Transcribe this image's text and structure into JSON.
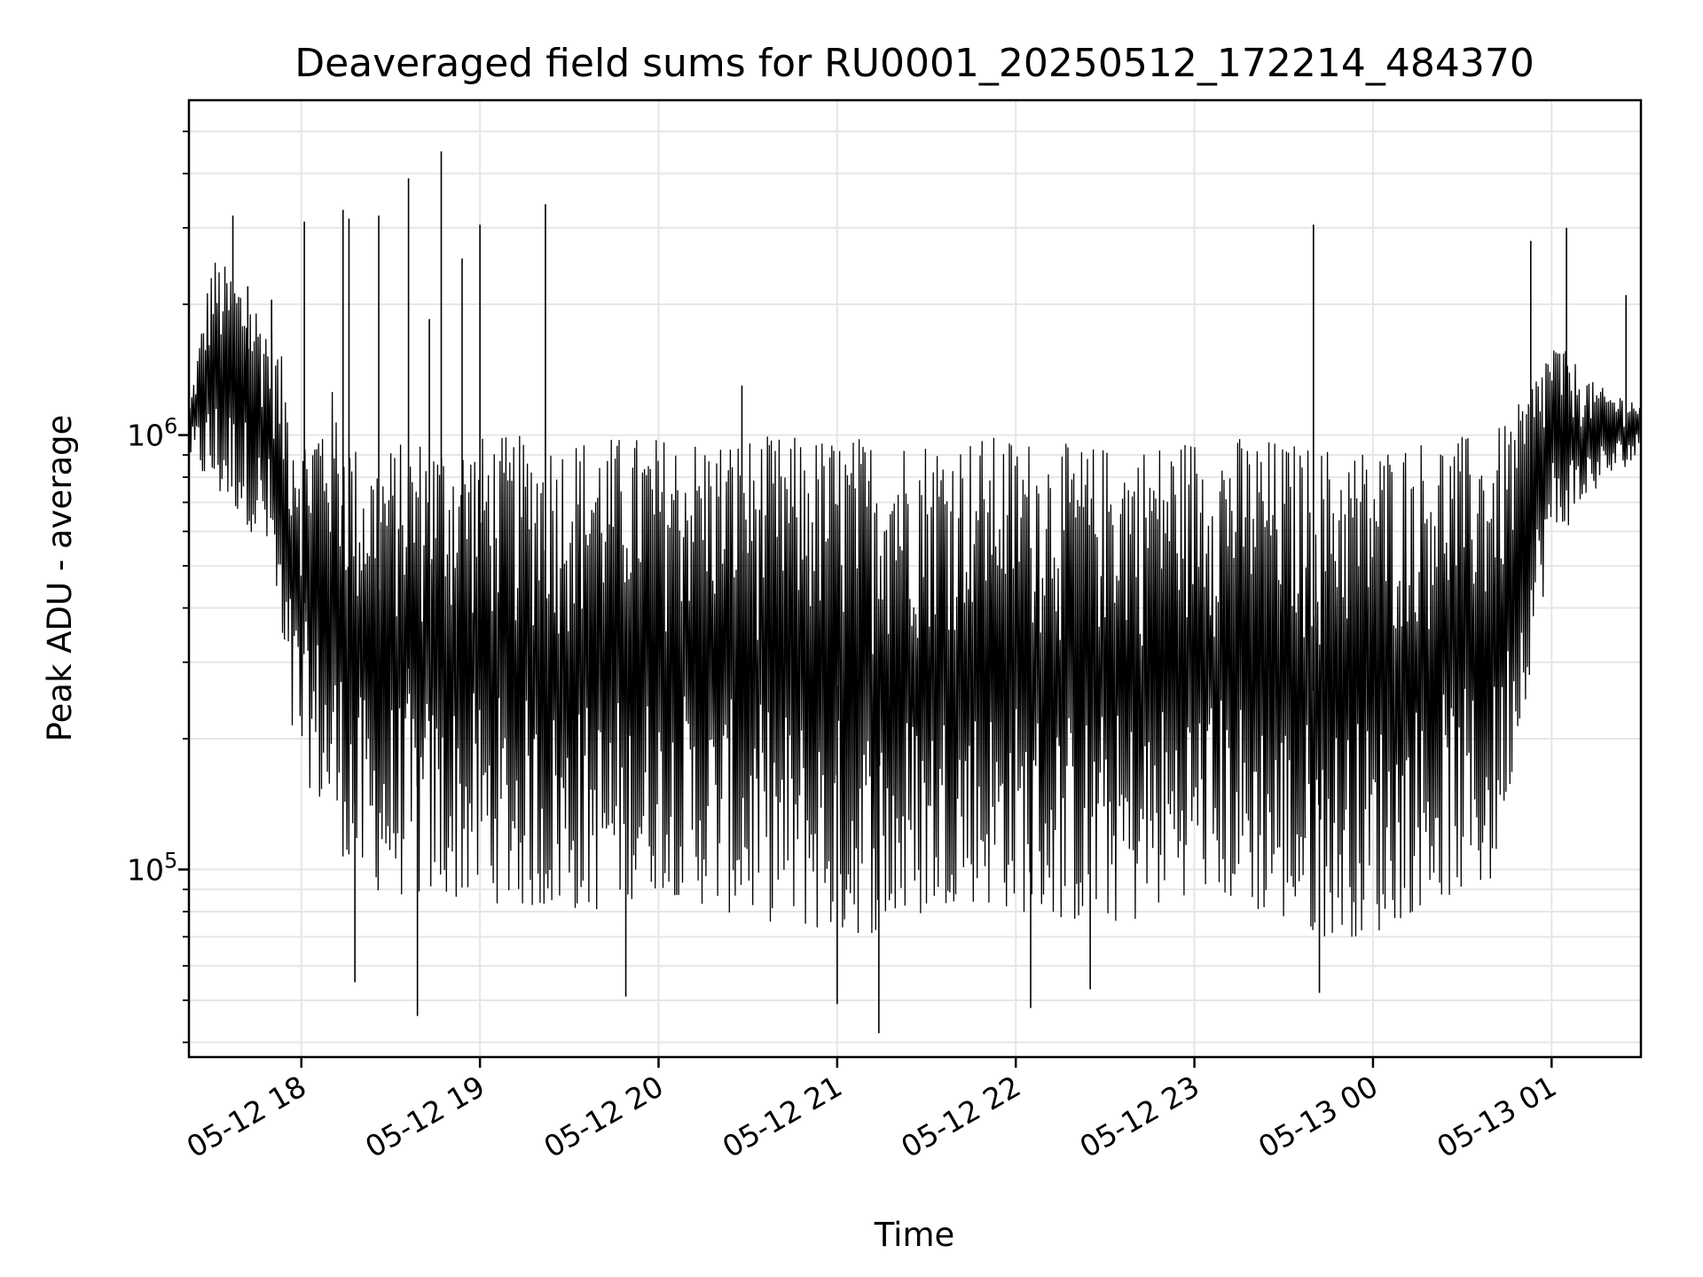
{
  "chart_data": {
    "type": "line",
    "title": "Deaveraged field sums for RU0001_20250512_172214_484370",
    "xlabel": "Time",
    "ylabel": "Peak ADU - average",
    "yscale": "log",
    "x_range": [
      "2025-05-12T17:22:14",
      "2025-05-13T01:30:00"
    ],
    "ylim": [
      37000,
      5900000
    ],
    "grid": true,
    "line_color": "#000000",
    "x_ticks": [
      "05-12 18",
      "05-12 19",
      "05-12 20",
      "05-12 21",
      "05-12 22",
      "05-12 23",
      "05-13 00",
      "05-13 01"
    ],
    "y_ticks": [
      {
        "value": 100000,
        "base": "10",
        "exp": "5"
      },
      {
        "value": 1000000,
        "base": "10",
        "exp": "6"
      }
    ],
    "series": [
      {
        "x": [
          "2025-05-12T17:22:14",
          "2025-05-12T17:30:00",
          "2025-05-12T17:40:00",
          "2025-05-12T17:50:00",
          "2025-05-12T17:55:00",
          "2025-05-12T18:00:00",
          "2025-05-12T18:10:00",
          "2025-05-12T18:20:00",
          "2025-05-12T18:40:00",
          "2025-05-12T19:00:00",
          "2025-05-12T19:20:00",
          "2025-05-12T19:40:00",
          "2025-05-12T20:00:00",
          "2025-05-12T20:20:00",
          "2025-05-12T20:40:00",
          "2025-05-12T21:00:00",
          "2025-05-12T21:20:00",
          "2025-05-12T21:40:00",
          "2025-05-12T22:00:00",
          "2025-05-12T22:20:00",
          "2025-05-12T22:40:00",
          "2025-05-12T23:00:00",
          "2025-05-12T23:20:00",
          "2025-05-12T23:40:00",
          "2025-05-13T00:00:00",
          "2025-05-13T00:20:00",
          "2025-05-13T00:40:00",
          "2025-05-13T00:50:00",
          "2025-05-13T01:00:00",
          "2025-05-13T01:15:00",
          "2025-05-13T01:30:00"
        ],
        "lower": [
          900000,
          720000,
          650000,
          500000,
          200000,
          170000,
          120000,
          90000,
          85000,
          85000,
          80000,
          80000,
          90000,
          80000,
          75000,
          70000,
          72000,
          85000,
          80000,
          75000,
          75000,
          90000,
          80000,
          70000,
          70000,
          85000,
          90000,
          220000,
          550000,
          750000,
          900000
        ],
        "upper": [
          1150000,
          2600000,
          2300000,
          1800000,
          1400000,
          1000000,
          1300000,
          900000,
          1000000,
          1000000,
          1000000,
          1000000,
          1000000,
          1000000,
          1000000,
          1000000,
          1000000,
          1000000,
          1000000,
          950000,
          950000,
          1000000,
          1000000,
          950000,
          950000,
          1000000,
          1000000,
          1200000,
          1700000,
          1300000,
          1200000
        ]
      }
    ],
    "spikes": [
      {
        "x": "2025-05-12T17:37:00",
        "y": 3200000
      },
      {
        "x": "2025-05-12T17:42:00",
        "y": 2200000
      },
      {
        "x": "2025-05-12T17:50:00",
        "y": 2050000
      },
      {
        "x": "2025-05-12T18:01:00",
        "y": 3100000
      },
      {
        "x": "2025-05-12T18:14:00",
        "y": 3300000
      },
      {
        "x": "2025-05-12T18:16:00",
        "y": 3150000
      },
      {
        "x": "2025-05-12T18:26:00",
        "y": 3200000
      },
      {
        "x": "2025-05-12T18:36:00",
        "y": 3900000
      },
      {
        "x": "2025-05-12T18:43:00",
        "y": 1850000
      },
      {
        "x": "2025-05-12T18:47:00",
        "y": 4500000
      },
      {
        "x": "2025-05-12T18:54:00",
        "y": 2550000
      },
      {
        "x": "2025-05-12T19:00:00",
        "y": 3050000
      },
      {
        "x": "2025-05-12T19:22:00",
        "y": 3400000
      },
      {
        "x": "2025-05-12T20:28:00",
        "y": 1300000
      },
      {
        "x": "2025-05-12T23:40:00",
        "y": 3050000
      },
      {
        "x": "2025-05-13T00:53:00",
        "y": 2800000
      },
      {
        "x": "2025-05-13T01:05:00",
        "y": 3000000
      },
      {
        "x": "2025-05-13T01:25:00",
        "y": 2100000
      },
      {
        "x": "2025-05-12T18:39:00",
        "y": 46000
      },
      {
        "x": "2025-05-12T21:14:00",
        "y": 42000
      },
      {
        "x": "2025-05-12T21:00:00",
        "y": 49000
      },
      {
        "x": "2025-05-12T22:05:00",
        "y": 48000
      },
      {
        "x": "2025-05-12T18:18:00",
        "y": 55000
      },
      {
        "x": "2025-05-12T19:49:00",
        "y": 51000
      },
      {
        "x": "2025-05-12T23:42:00",
        "y": 52000
      },
      {
        "x": "2025-05-12T22:25:00",
        "y": 53000
      }
    ]
  }
}
